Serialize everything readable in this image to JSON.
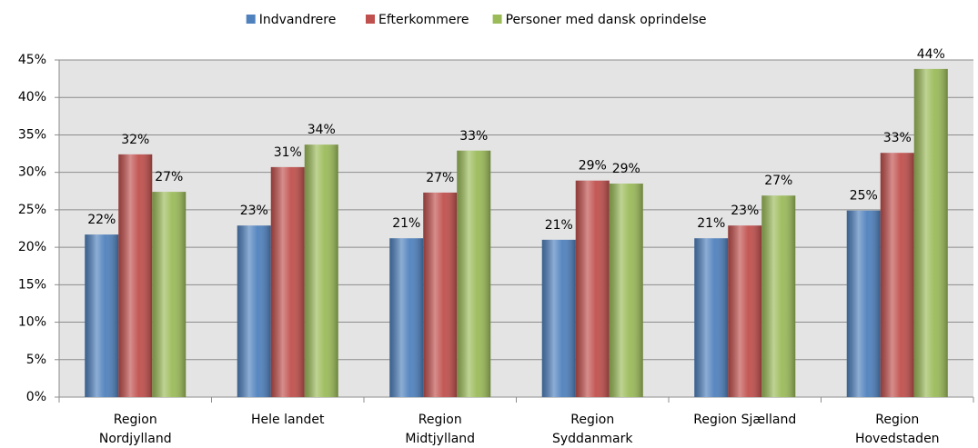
{
  "chart_data": {
    "type": "bar",
    "categories": [
      "Region\nNordjylland",
      "Hele landet",
      "Region\nMidtjylland",
      "Region\nSyddanmark",
      "Region Sjælland",
      "Region\nHovedstaden"
    ],
    "series": [
      {
        "name": "Indvandrere",
        "color": "#4f81bd",
        "values": [
          21.7,
          22.9,
          21.2,
          21.0,
          21.2,
          24.9
        ],
        "value_labels": [
          "22%",
          "23%",
          "21%",
          "21%",
          "21%",
          "25%"
        ]
      },
      {
        "name": "Efterkommere",
        "color": "#c0504d",
        "values": [
          32.4,
          30.7,
          27.3,
          28.9,
          22.9,
          32.6
        ],
        "value_labels": [
          "32%",
          "31%",
          "27%",
          "29%",
          "23%",
          "33%"
        ]
      },
      {
        "name": "Personer med dansk oprindelse",
        "color": "#9bbb59",
        "values": [
          27.4,
          33.7,
          32.9,
          28.5,
          26.9,
          43.8
        ],
        "value_labels": [
          "27%",
          "34%",
          "33%",
          "29%",
          "27%",
          "44%"
        ]
      }
    ],
    "ylim": [
      0,
      45
    ],
    "yticks": [
      {
        "value": 0,
        "label": "0%"
      },
      {
        "value": 5,
        "label": "5%"
      },
      {
        "value": 10,
        "label": "10%"
      },
      {
        "value": 15,
        "label": "15%"
      },
      {
        "value": 20,
        "label": "20%"
      },
      {
        "value": 25,
        "label": "25%"
      },
      {
        "value": 30,
        "label": "30%"
      },
      {
        "value": 35,
        "label": "35%"
      },
      {
        "value": 40,
        "label": "40%"
      },
      {
        "value": 45,
        "label": "45%"
      }
    ],
    "grid": true,
    "legend": "top"
  }
}
